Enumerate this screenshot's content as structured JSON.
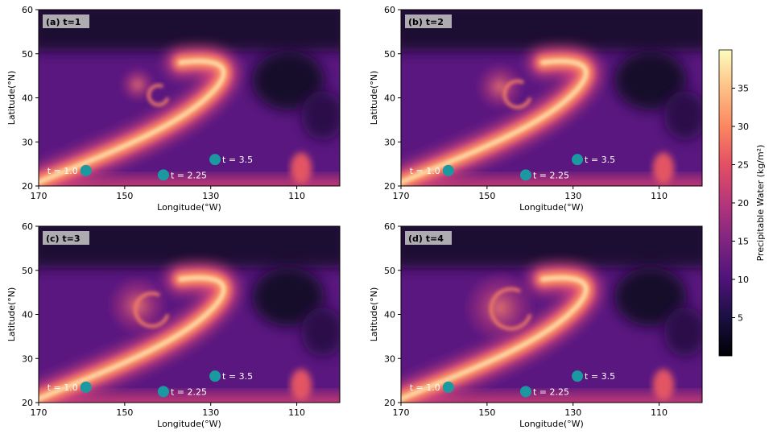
{
  "chart_data": {
    "type": "heatmap",
    "xlabel": "Longitude(°W)",
    "ylabel": "Latitude(°N)",
    "xticks": [
      "170",
      "150",
      "130",
      "110"
    ],
    "yticks": [
      "20",
      "30",
      "40",
      "50",
      "60"
    ],
    "xlim": [
      170,
      100
    ],
    "ylim": [
      20,
      60
    ],
    "colorbar": {
      "label": "Precipitable Water (kg/m²)",
      "range": [
        0,
        40
      ],
      "ticks": [
        "5",
        "10",
        "15",
        "20",
        "25",
        "30",
        "35"
      ],
      "colormap": "magma"
    },
    "point_color": "#1a9aa0",
    "panels": [
      {
        "title": "(a) t=1",
        "points": [
          {
            "label": "t = 1.0",
            "lon": 159,
            "lat": 23.5
          },
          {
            "label": "t = 2.25",
            "lon": 141,
            "lat": 22.5
          },
          {
            "label": "t = 3.5",
            "lon": 129,
            "lat": 26
          }
        ]
      },
      {
        "title": "(b) t=2",
        "points": [
          {
            "label": "t = 1.0",
            "lon": 159,
            "lat": 23.5
          },
          {
            "label": "t = 2.25",
            "lon": 141,
            "lat": 22.5
          },
          {
            "label": "t = 3.5",
            "lon": 129,
            "lat": 26
          }
        ]
      },
      {
        "title": "(c) t=3",
        "points": [
          {
            "label": "t = 1.0",
            "lon": 159,
            "lat": 23.5
          },
          {
            "label": "t = 2.25",
            "lon": 141,
            "lat": 22.5
          },
          {
            "label": "t = 3.5",
            "lon": 129,
            "lat": 26
          }
        ]
      },
      {
        "title": "(d) t=4",
        "points": [
          {
            "label": "t = 1.0",
            "lon": 159,
            "lat": 23.5
          },
          {
            "label": "t = 2.25",
            "lon": 141,
            "lat": 22.5
          },
          {
            "label": "t = 3.5",
            "lon": 129,
            "lat": 26
          }
        ]
      }
    ]
  }
}
